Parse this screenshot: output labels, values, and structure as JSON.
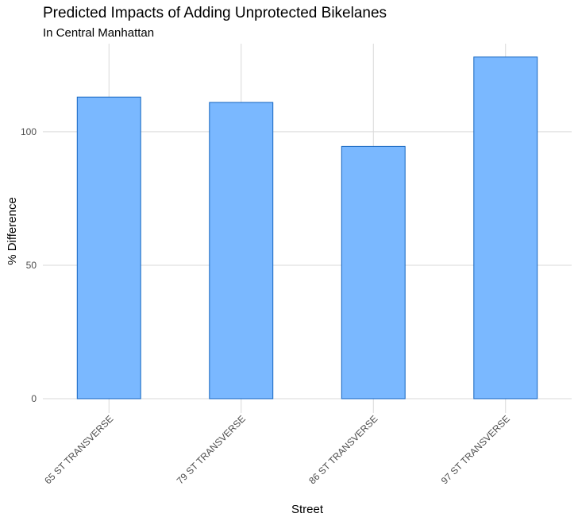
{
  "chart_data": {
    "type": "bar",
    "title": "Predicted Impacts of Adding Unprotected Bikelanes",
    "subtitle": "In Central Manhattan",
    "xlabel": "Street",
    "ylabel": "% Difference",
    "categories": [
      "65 ST TRANSVERSE",
      "79 ST TRANSVERSE",
      "86 ST TRANSVERSE",
      "97 ST TRANSVERSE"
    ],
    "values": [
      113,
      111,
      94.5,
      128
    ],
    "ylim": [
      0,
      133
    ],
    "yticks": [
      0,
      50,
      100
    ],
    "grid": true,
    "bar_fill": "#7ab8ff",
    "bar_stroke": "#1565c0",
    "grid_color": "#d9d9d9"
  }
}
